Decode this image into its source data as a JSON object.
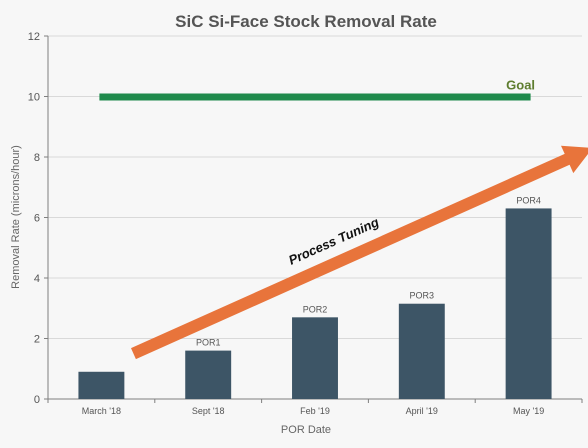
{
  "chart_data": {
    "type": "bar",
    "title": "SiC Si-Face Stock Removal Rate",
    "xlabel": "POR Date",
    "ylabel": "Removal Rate (microns/hour)",
    "categories": [
      "March '18",
      "Sept '18",
      "Feb '19",
      "April '19",
      "May '19"
    ],
    "values": [
      0.9,
      1.6,
      2.7,
      3.15,
      6.3
    ],
    "data_labels": [
      "",
      "POR1",
      "POR2",
      "POR3",
      "POR4"
    ],
    "ylim": [
      0,
      12
    ],
    "yticks": [
      0,
      2,
      4,
      6,
      8,
      10,
      12
    ],
    "grid": true,
    "bar_color": "#3d5566",
    "goal": {
      "label": "Goal",
      "value": 10,
      "color": "#1f8a4c",
      "label_color": "#5e7d2f"
    },
    "trend_annotation": {
      "label": "Process Tuning",
      "start": {
        "x": 0.3,
        "y": 1.5
      },
      "end": {
        "x": 4.6,
        "y": 8.3
      },
      "color": "#e8743b"
    }
  }
}
